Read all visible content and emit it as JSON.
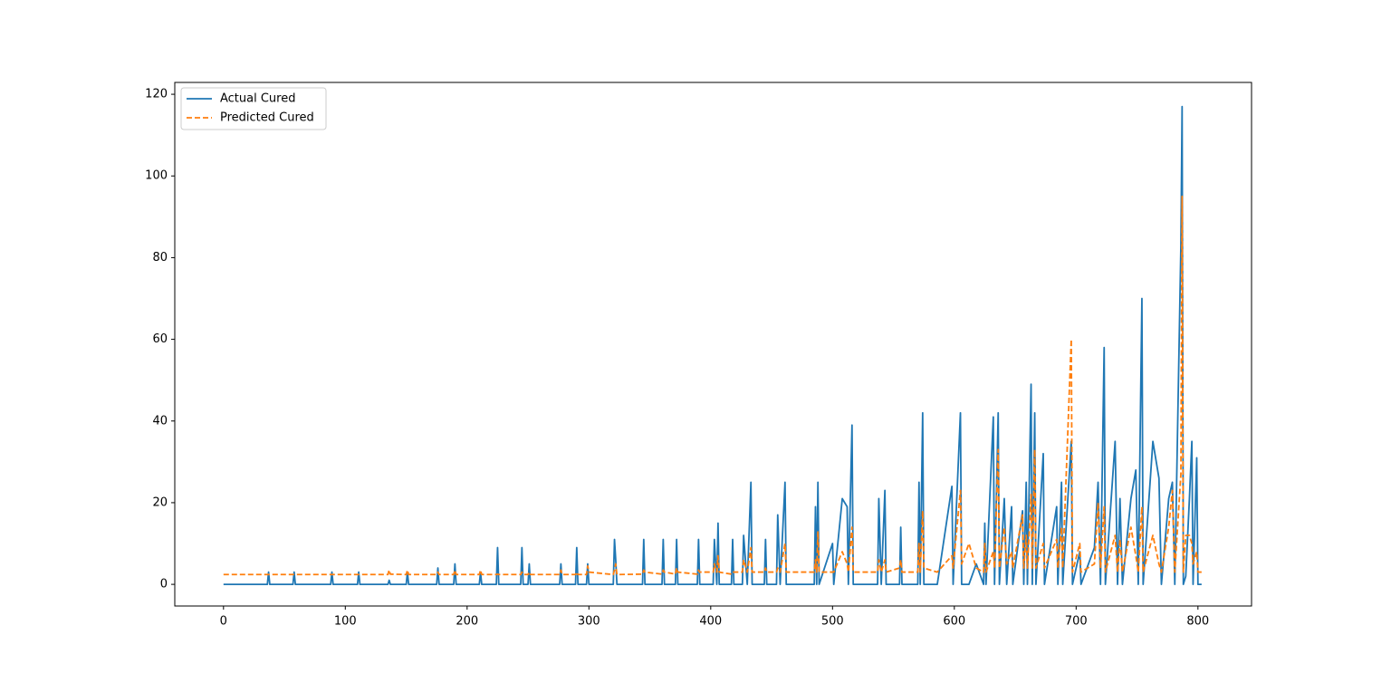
{
  "chart_data": {
    "type": "line",
    "x": [
      0,
      36,
      37,
      38,
      57,
      58,
      59,
      88,
      89,
      90,
      110,
      111,
      112,
      135,
      136,
      137,
      150,
      151,
      152,
      175,
      176,
      177,
      189,
      190,
      191,
      210,
      211,
      212,
      224,
      225,
      226,
      244,
      245,
      246,
      250,
      251,
      252,
      276,
      277,
      278,
      289,
      290,
      291,
      298,
      299,
      300,
      320,
      321,
      322,
      323,
      344,
      345,
      346,
      360,
      361,
      362,
      371,
      372,
      373,
      389,
      390,
      391,
      402,
      403,
      405,
      406,
      407,
      417,
      418,
      419,
      426,
      427,
      430,
      433,
      434,
      444,
      445,
      446,
      454,
      455,
      457,
      461,
      462,
      485,
      486,
      487,
      488,
      489,
      500,
      501,
      508,
      512,
      513,
      516,
      517,
      537,
      538,
      540,
      543,
      544,
      555,
      556,
      557,
      570,
      571,
      572,
      574,
      575,
      586,
      598,
      599,
      605,
      606,
      612,
      618,
      624,
      625,
      626,
      632,
      633,
      636,
      637,
      641,
      643,
      647,
      648,
      656,
      657,
      659,
      660,
      663,
      664,
      666,
      667,
      673,
      674,
      684,
      685,
      688,
      689,
      696,
      697,
      703,
      704,
      715,
      718,
      720,
      723,
      724,
      732,
      734,
      736,
      738,
      745,
      749,
      751,
      754,
      755,
      763,
      768,
      770,
      776,
      779,
      781,
      786,
      787,
      788,
      790,
      793,
      795,
      796,
      799,
      800,
      803
    ],
    "series": [
      {
        "name": "Actual Cured",
        "color": "#1f77b4",
        "linestyle": "solid",
        "values": [
          0,
          0,
          3,
          0,
          0,
          3,
          0,
          0,
          3,
          0,
          0,
          3,
          0,
          0,
          1,
          0,
          0,
          3,
          0,
          0,
          4,
          0,
          0,
          5,
          0,
          0,
          3,
          0,
          0,
          9,
          0,
          0,
          9,
          0,
          0,
          5,
          0,
          0,
          5,
          0,
          0,
          9,
          0,
          0,
          5,
          0,
          0,
          11,
          6,
          0,
          0,
          11,
          0,
          0,
          11,
          0,
          0,
          11,
          0,
          0,
          11,
          0,
          0,
          11,
          0,
          15,
          0,
          0,
          11,
          0,
          0,
          12,
          0,
          25,
          0,
          0,
          11,
          0,
          0,
          17,
          0,
          25,
          0,
          0,
          19,
          0,
          25,
          0,
          10,
          0,
          21,
          19,
          0,
          39,
          0,
          0,
          21,
          0,
          23,
          0,
          0,
          14,
          0,
          0,
          25,
          0,
          42,
          0,
          0,
          24,
          0,
          42,
          0,
          0,
          5,
          0,
          15,
          0,
          41,
          0,
          42,
          0,
          21,
          0,
          19,
          0,
          18,
          0,
          25,
          0,
          49,
          0,
          42,
          0,
          32,
          0,
          19,
          0,
          25,
          0,
          35,
          0,
          8,
          0,
          9,
          25,
          0,
          58,
          0,
          35,
          0,
          21,
          0,
          21,
          28,
          0,
          70,
          0,
          35,
          26,
          0,
          21,
          25,
          0,
          83,
          117,
          0,
          2,
          21,
          35,
          0,
          31,
          0,
          0
        ]
      },
      {
        "name": "Predicted Cured",
        "color": "#ff7f0e",
        "linestyle": "dashed",
        "values": [
          2.4,
          2.4,
          2.4,
          2.4,
          2.4,
          2.4,
          2.4,
          2.4,
          2.4,
          2.4,
          2.4,
          2.4,
          2.4,
          2.4,
          3.5,
          2.5,
          2.4,
          3.5,
          2.4,
          2.4,
          3,
          2.4,
          2.4,
          3.5,
          2.4,
          2.4,
          3.5,
          2.4,
          2.4,
          2.5,
          2.4,
          2.4,
          3,
          2.4,
          2.4,
          3,
          2.4,
          2.4,
          3.5,
          2.4,
          2.4,
          3,
          2.4,
          2.4,
          4.5,
          3,
          2.4,
          3.5,
          5,
          2.4,
          2.5,
          3.5,
          3,
          2.5,
          3.5,
          3,
          2.5,
          4,
          3,
          2.5,
          3.5,
          3,
          3,
          5,
          3,
          7,
          3,
          2.5,
          3,
          3,
          3,
          6,
          3,
          9,
          3,
          3,
          4,
          3,
          3,
          4,
          3,
          10,
          3,
          3,
          6,
          3,
          13,
          3,
          3,
          3,
          8,
          5,
          3,
          14,
          3,
          3,
          6,
          3,
          6,
          3,
          4,
          6,
          3,
          3,
          10,
          3,
          18,
          4,
          3,
          7,
          4,
          23,
          5,
          10,
          4,
          3,
          10,
          3,
          8,
          4,
          33,
          4,
          14,
          5,
          8,
          4,
          17,
          4,
          12,
          4,
          22,
          4,
          33,
          4,
          10,
          4,
          11,
          4,
          14,
          4,
          60,
          3,
          10,
          3,
          5,
          20,
          4,
          19,
          3,
          12,
          3,
          11,
          3,
          14,
          7,
          3,
          19,
          3,
          12,
          5,
          3,
          14,
          23,
          3,
          27,
          95,
          3,
          12,
          12,
          10,
          5,
          8,
          3,
          3
        ]
      }
    ],
    "xlim": [
      -40,
      844
    ],
    "xticks": [
      0,
      100,
      200,
      300,
      400,
      500,
      600,
      700,
      800
    ],
    "ylim": [
      -5.3,
      122.9
    ],
    "yticks": [
      0,
      20,
      40,
      60,
      80,
      100,
      120
    ],
    "grid": false,
    "legend": "upper left"
  }
}
